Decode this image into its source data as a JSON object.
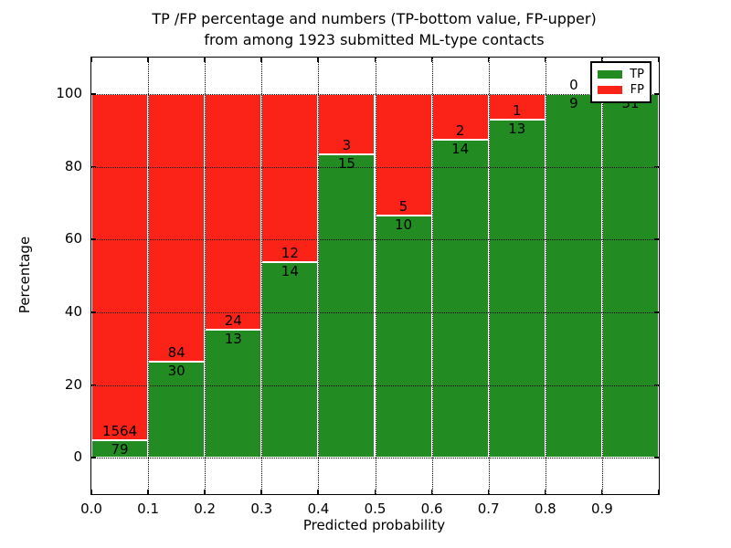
{
  "chart_data": {
    "type": "bar",
    "stacked": true,
    "title": "TP /FP percentage and numbers (TP-bottom value, FP-upper) from among 1923 submitted ML-type contacts",
    "title_line1": "TP /FP percentage and numbers (TP-bottom value, FP-upper)",
    "title_line2": "from among 1923 submitted ML-type contacts",
    "xlabel": "Predicted probability",
    "ylabel": "Percentage",
    "x_tick_labels": [
      "0.0",
      "0.1",
      "0.2",
      "0.3",
      "0.4",
      "0.5",
      "0.6",
      "0.7",
      "0.8",
      "0.9"
    ],
    "y_ticks": [
      0,
      20,
      40,
      60,
      80,
      100
    ],
    "xlim": [
      0.0,
      1.0
    ],
    "ylim": [
      -10,
      110
    ],
    "bin_width": 0.1,
    "grid": "dotted",
    "bins": [
      {
        "x0": 0.0,
        "x1": 0.1,
        "tp": 79,
        "fp": 1564
      },
      {
        "x0": 0.1,
        "x1": 0.2,
        "tp": 30,
        "fp": 84
      },
      {
        "x0": 0.2,
        "x1": 0.3,
        "tp": 13,
        "fp": 24
      },
      {
        "x0": 0.3,
        "x1": 0.4,
        "tp": 14,
        "fp": 12
      },
      {
        "x0": 0.4,
        "x1": 0.5,
        "tp": 15,
        "fp": 3
      },
      {
        "x0": 0.5,
        "x1": 0.6,
        "tp": 10,
        "fp": 5
      },
      {
        "x0": 0.6,
        "x1": 0.7,
        "tp": 14,
        "fp": 2
      },
      {
        "x0": 0.7,
        "x1": 0.8,
        "tp": 13,
        "fp": 1
      },
      {
        "x0": 0.8,
        "x1": 0.9,
        "tp": 9,
        "fp": 0
      },
      {
        "x0": 0.9,
        "x1": 1.0,
        "tp": 31,
        "fp": 0
      }
    ],
    "legend": {
      "position": "upper right",
      "items": [
        {
          "label": "TP",
          "color": "#228b22"
        },
        {
          "label": "FP",
          "color": "#fb2318"
        }
      ]
    },
    "colors": {
      "tp": "#228b22",
      "fp": "#fb2318",
      "bar_edge": "#ffffff",
      "text": "#000000"
    }
  }
}
